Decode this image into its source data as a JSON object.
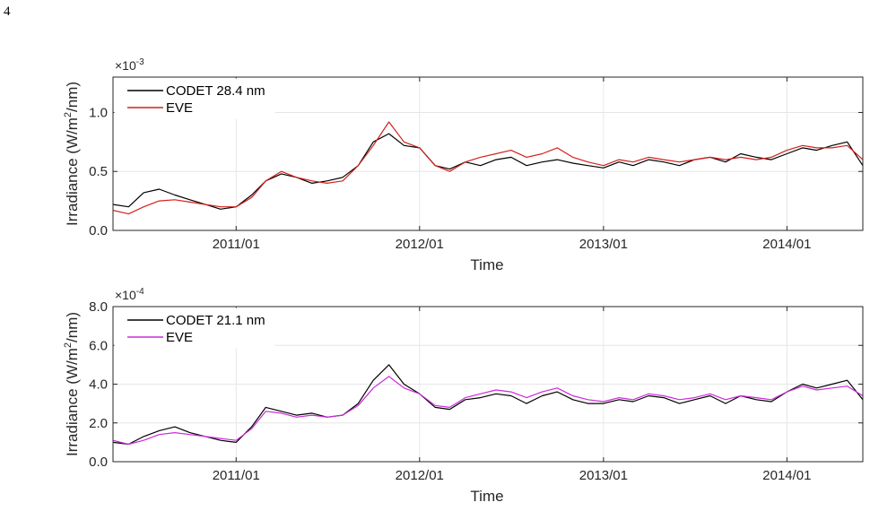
{
  "page": {
    "number": "4"
  },
  "chart_data": [
    {
      "type": "line",
      "xlabel": "Time",
      "ylabel": "Irradiance (W/m2/nm)",
      "ylabel_parts": {
        "before": "Irradiance (W/m",
        "sup": "2",
        "after": "/nm)"
      },
      "exponent": {
        "base": "×10",
        "power": "-3"
      },
      "x_range": [
        "2010-05-01",
        "2014-06-01"
      ],
      "x_ticks": [
        "2011/01",
        "2012/01",
        "2013/01",
        "2014/01"
      ],
      "ylim": [
        0.0,
        1.3
      ],
      "y_ticks": [
        "0.0",
        "0.5",
        "1.0"
      ],
      "y_tick_values": [
        0.0,
        0.5,
        1.0
      ],
      "grid": true,
      "legend_position": "top-left",
      "series": [
        {
          "name": "CODET 28.4 nm",
          "color": "#000000",
          "points": [
            [
              "2010-05-01",
              0.22
            ],
            [
              "2010-06-01",
              0.2
            ],
            [
              "2010-07-01",
              0.32
            ],
            [
              "2010-08-01",
              0.35
            ],
            [
              "2010-09-01",
              0.3
            ],
            [
              "2010-10-01",
              0.26
            ],
            [
              "2010-11-01",
              0.22
            ],
            [
              "2010-12-01",
              0.18
            ],
            [
              "2011-01-01",
              0.2
            ],
            [
              "2011-02-01",
              0.3
            ],
            [
              "2011-03-01",
              0.42
            ],
            [
              "2011-04-01",
              0.48
            ],
            [
              "2011-05-01",
              0.45
            ],
            [
              "2011-06-01",
              0.4
            ],
            [
              "2011-07-01",
              0.42
            ],
            [
              "2011-08-01",
              0.45
            ],
            [
              "2011-09-01",
              0.55
            ],
            [
              "2011-10-01",
              0.75
            ],
            [
              "2011-11-01",
              0.82
            ],
            [
              "2011-12-01",
              0.72
            ],
            [
              "2012-01-01",
              0.7
            ],
            [
              "2012-02-01",
              0.55
            ],
            [
              "2012-03-01",
              0.52
            ],
            [
              "2012-04-01",
              0.58
            ],
            [
              "2012-05-01",
              0.55
            ],
            [
              "2012-06-01",
              0.6
            ],
            [
              "2012-07-01",
              0.62
            ],
            [
              "2012-08-01",
              0.55
            ],
            [
              "2012-09-01",
              0.58
            ],
            [
              "2012-10-01",
              0.6
            ],
            [
              "2012-11-01",
              0.57
            ],
            [
              "2012-12-01",
              0.55
            ],
            [
              "2013-01-01",
              0.53
            ],
            [
              "2013-02-01",
              0.58
            ],
            [
              "2013-03-01",
              0.55
            ],
            [
              "2013-04-01",
              0.6
            ],
            [
              "2013-05-01",
              0.58
            ],
            [
              "2013-06-01",
              0.55
            ],
            [
              "2013-07-01",
              0.6
            ],
            [
              "2013-08-01",
              0.62
            ],
            [
              "2013-09-01",
              0.58
            ],
            [
              "2013-10-01",
              0.65
            ],
            [
              "2013-11-01",
              0.62
            ],
            [
              "2013-12-01",
              0.6
            ],
            [
              "2014-01-01",
              0.65
            ],
            [
              "2014-02-01",
              0.7
            ],
            [
              "2014-03-01",
              0.68
            ],
            [
              "2014-04-01",
              0.72
            ],
            [
              "2014-05-01",
              0.75
            ],
            [
              "2014-06-01",
              0.55
            ]
          ]
        },
        {
          "name": "EVE",
          "color": "#d3201c",
          "points": [
            [
              "2010-05-01",
              0.17
            ],
            [
              "2010-06-01",
              0.14
            ],
            [
              "2010-07-01",
              0.2
            ],
            [
              "2010-08-01",
              0.25
            ],
            [
              "2010-09-01",
              0.26
            ],
            [
              "2010-10-01",
              0.24
            ],
            [
              "2010-11-01",
              0.22
            ],
            [
              "2010-12-01",
              0.2
            ],
            [
              "2011-01-01",
              0.2
            ],
            [
              "2011-02-01",
              0.28
            ],
            [
              "2011-03-01",
              0.42
            ],
            [
              "2011-04-01",
              0.5
            ],
            [
              "2011-05-01",
              0.45
            ],
            [
              "2011-06-01",
              0.42
            ],
            [
              "2011-07-01",
              0.4
            ],
            [
              "2011-08-01",
              0.42
            ],
            [
              "2011-09-01",
              0.55
            ],
            [
              "2011-10-01",
              0.72
            ],
            [
              "2011-11-01",
              0.92
            ],
            [
              "2011-12-01",
              0.75
            ],
            [
              "2012-01-01",
              0.7
            ],
            [
              "2012-02-01",
              0.55
            ],
            [
              "2012-03-01",
              0.5
            ],
            [
              "2012-04-01",
              0.58
            ],
            [
              "2012-05-01",
              0.62
            ],
            [
              "2012-06-01",
              0.65
            ],
            [
              "2012-07-01",
              0.68
            ],
            [
              "2012-08-01",
              0.62
            ],
            [
              "2012-09-01",
              0.65
            ],
            [
              "2012-10-01",
              0.7
            ],
            [
              "2012-11-01",
              0.62
            ],
            [
              "2012-12-01",
              0.58
            ],
            [
              "2013-01-01",
              0.55
            ],
            [
              "2013-02-01",
              0.6
            ],
            [
              "2013-03-01",
              0.58
            ],
            [
              "2013-04-01",
              0.62
            ],
            [
              "2013-05-01",
              0.6
            ],
            [
              "2013-06-01",
              0.58
            ],
            [
              "2013-07-01",
              0.6
            ],
            [
              "2013-08-01",
              0.62
            ],
            [
              "2013-09-01",
              0.6
            ],
            [
              "2013-10-01",
              0.62
            ],
            [
              "2013-11-01",
              0.6
            ],
            [
              "2013-12-01",
              0.62
            ],
            [
              "2014-01-01",
              0.68
            ],
            [
              "2014-02-01",
              0.72
            ],
            [
              "2014-03-01",
              0.7
            ],
            [
              "2014-04-01",
              0.7
            ],
            [
              "2014-05-01",
              0.72
            ],
            [
              "2014-06-01",
              0.6
            ]
          ]
        }
      ]
    },
    {
      "type": "line",
      "xlabel": "Time",
      "ylabel": "Irradiance (W/m2/nm)",
      "ylabel_parts": {
        "before": "Irradiance (W/m",
        "sup": "2",
        "after": "/nm)"
      },
      "exponent": {
        "base": "×10",
        "power": "-4"
      },
      "x_range": [
        "2010-05-01",
        "2014-06-01"
      ],
      "x_ticks": [
        "2011/01",
        "2012/01",
        "2013/01",
        "2014/01"
      ],
      "ylim": [
        0.0,
        8.0
      ],
      "y_ticks": [
        "0.0",
        "2.0",
        "4.0",
        "6.0",
        "8.0"
      ],
      "y_tick_values": [
        0.0,
        2.0,
        4.0,
        6.0,
        8.0
      ],
      "grid": true,
      "legend_position": "top-left",
      "series": [
        {
          "name": "CODET 21.1 nm",
          "color": "#000000",
          "points": [
            [
              "2010-05-01",
              1.0
            ],
            [
              "2010-06-01",
              0.9
            ],
            [
              "2010-07-01",
              1.3
            ],
            [
              "2010-08-01",
              1.6
            ],
            [
              "2010-09-01",
              1.8
            ],
            [
              "2010-10-01",
              1.5
            ],
            [
              "2010-11-01",
              1.3
            ],
            [
              "2010-12-01",
              1.1
            ],
            [
              "2011-01-01",
              1.0
            ],
            [
              "2011-02-01",
              1.8
            ],
            [
              "2011-03-01",
              2.8
            ],
            [
              "2011-04-01",
              2.6
            ],
            [
              "2011-05-01",
              2.4
            ],
            [
              "2011-06-01",
              2.5
            ],
            [
              "2011-07-01",
              2.3
            ],
            [
              "2011-08-01",
              2.4
            ],
            [
              "2011-09-01",
              3.0
            ],
            [
              "2011-10-01",
              4.2
            ],
            [
              "2011-11-01",
              5.0
            ],
            [
              "2011-12-01",
              4.0
            ],
            [
              "2012-01-01",
              3.5
            ],
            [
              "2012-02-01",
              2.8
            ],
            [
              "2012-03-01",
              2.7
            ],
            [
              "2012-04-01",
              3.2
            ],
            [
              "2012-05-01",
              3.3
            ],
            [
              "2012-06-01",
              3.5
            ],
            [
              "2012-07-01",
              3.4
            ],
            [
              "2012-08-01",
              3.0
            ],
            [
              "2012-09-01",
              3.4
            ],
            [
              "2012-10-01",
              3.6
            ],
            [
              "2012-11-01",
              3.2
            ],
            [
              "2012-12-01",
              3.0
            ],
            [
              "2013-01-01",
              3.0
            ],
            [
              "2013-02-01",
              3.2
            ],
            [
              "2013-03-01",
              3.1
            ],
            [
              "2013-04-01",
              3.4
            ],
            [
              "2013-05-01",
              3.3
            ],
            [
              "2013-06-01",
              3.0
            ],
            [
              "2013-07-01",
              3.2
            ],
            [
              "2013-08-01",
              3.4
            ],
            [
              "2013-09-01",
              3.0
            ],
            [
              "2013-10-01",
              3.4
            ],
            [
              "2013-11-01",
              3.2
            ],
            [
              "2013-12-01",
              3.1
            ],
            [
              "2014-01-01",
              3.6
            ],
            [
              "2014-02-01",
              4.0
            ],
            [
              "2014-03-01",
              3.8
            ],
            [
              "2014-04-01",
              4.0
            ],
            [
              "2014-05-01",
              4.2
            ],
            [
              "2014-06-01",
              3.2
            ]
          ]
        },
        {
          "name": "EVE",
          "color": "#cc2bd8",
          "points": [
            [
              "2010-05-01",
              1.1
            ],
            [
              "2010-06-01",
              0.9
            ],
            [
              "2010-07-01",
              1.1
            ],
            [
              "2010-08-01",
              1.4
            ],
            [
              "2010-09-01",
              1.5
            ],
            [
              "2010-10-01",
              1.4
            ],
            [
              "2010-11-01",
              1.3
            ],
            [
              "2010-12-01",
              1.2
            ],
            [
              "2011-01-01",
              1.1
            ],
            [
              "2011-02-01",
              1.7
            ],
            [
              "2011-03-01",
              2.6
            ],
            [
              "2011-04-01",
              2.5
            ],
            [
              "2011-05-01",
              2.3
            ],
            [
              "2011-06-01",
              2.4
            ],
            [
              "2011-07-01",
              2.3
            ],
            [
              "2011-08-01",
              2.4
            ],
            [
              "2011-09-01",
              2.9
            ],
            [
              "2011-10-01",
              3.8
            ],
            [
              "2011-11-01",
              4.4
            ],
            [
              "2011-12-01",
              3.8
            ],
            [
              "2012-01-01",
              3.5
            ],
            [
              "2012-02-01",
              2.9
            ],
            [
              "2012-03-01",
              2.8
            ],
            [
              "2012-04-01",
              3.3
            ],
            [
              "2012-05-01",
              3.5
            ],
            [
              "2012-06-01",
              3.7
            ],
            [
              "2012-07-01",
              3.6
            ],
            [
              "2012-08-01",
              3.3
            ],
            [
              "2012-09-01",
              3.6
            ],
            [
              "2012-10-01",
              3.8
            ],
            [
              "2012-11-01",
              3.4
            ],
            [
              "2012-12-01",
              3.2
            ],
            [
              "2013-01-01",
              3.1
            ],
            [
              "2013-02-01",
              3.3
            ],
            [
              "2013-03-01",
              3.2
            ],
            [
              "2013-04-01",
              3.5
            ],
            [
              "2013-05-01",
              3.4
            ],
            [
              "2013-06-01",
              3.2
            ],
            [
              "2013-07-01",
              3.3
            ],
            [
              "2013-08-01",
              3.5
            ],
            [
              "2013-09-01",
              3.2
            ],
            [
              "2013-10-01",
              3.4
            ],
            [
              "2013-11-01",
              3.3
            ],
            [
              "2013-12-01",
              3.2
            ],
            [
              "2014-01-01",
              3.6
            ],
            [
              "2014-02-01",
              3.9
            ],
            [
              "2014-03-01",
              3.7
            ],
            [
              "2014-04-01",
              3.8
            ],
            [
              "2014-05-01",
              3.9
            ],
            [
              "2014-06-01",
              3.4
            ]
          ]
        }
      ]
    }
  ]
}
